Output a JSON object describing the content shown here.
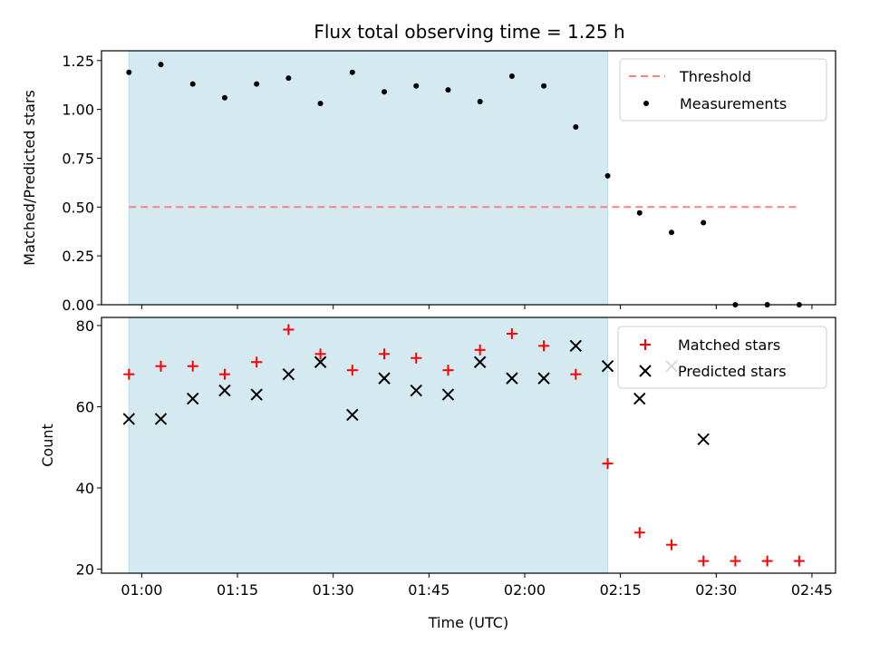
{
  "chart_data": {
    "title": "Flux total observing time = 1.25 h",
    "xlabel": "Time (UTC)",
    "x_tick_labels": [
      "01:00",
      "01:15",
      "01:30",
      "01:45",
      "02:00",
      "02:15",
      "02:30",
      "02:45"
    ],
    "x_tick_minutes": [
      60,
      75,
      90,
      105,
      120,
      135,
      150,
      165
    ],
    "xlim_minutes": [
      53.7,
      168.7
    ],
    "observing_window_minutes": [
      58,
      133
    ],
    "panels": [
      {
        "type": "scatter",
        "ylabel": "Matched/Predicted stars",
        "ylim": [
          0,
          1.3
        ],
        "yticks": [
          0.0,
          0.25,
          0.5,
          0.75,
          1.0,
          1.25
        ],
        "ytick_labels": [
          "0.00",
          "0.25",
          "0.50",
          "0.75",
          "1.00",
          "1.25"
        ],
        "threshold": {
          "name": "Threshold",
          "value": 0.5,
          "x_range_minutes": [
            58,
            163
          ],
          "color": "#ff8080"
        },
        "series": [
          {
            "name": "Measurements",
            "color": "#000000",
            "x_minutes": [
              58,
              63,
              68,
              73,
              78,
              83,
              88,
              93,
              98,
              103,
              108,
              113,
              118,
              123,
              128,
              133,
              138,
              143,
              148,
              153,
              158,
              163
            ],
            "values": [
              1.19,
              1.23,
              1.13,
              1.06,
              1.13,
              1.16,
              1.03,
              1.19,
              1.09,
              1.12,
              1.1,
              1.04,
              1.17,
              1.12,
              0.91,
              0.66,
              0.47,
              0.37,
              0.42,
              0.0,
              0.0,
              0.0
            ]
          }
        ],
        "legend": {
          "position": "upper right",
          "entries": [
            "Threshold",
            "Measurements"
          ]
        }
      },
      {
        "type": "scatter",
        "ylabel": "Count",
        "ylim": [
          19,
          82
        ],
        "yticks": [
          20,
          40,
          60,
          80
        ],
        "ytick_labels": [
          "20",
          "40",
          "60",
          "80"
        ],
        "series": [
          {
            "name": "Matched stars",
            "marker": "plus",
            "color": "#ff0000",
            "x_minutes": [
              58,
              63,
              68,
              73,
              78,
              83,
              88,
              93,
              98,
              103,
              108,
              113,
              118,
              123,
              128,
              133,
              138,
              143,
              148,
              153,
              158,
              163
            ],
            "values": [
              68,
              70,
              70,
              68,
              71,
              79,
              73,
              69,
              73,
              72,
              69,
              74,
              78,
              75,
              68,
              46,
              29,
              26,
              22,
              22,
              22,
              22
            ]
          },
          {
            "name": "Predicted stars",
            "marker": "x",
            "color": "#000000",
            "x_minutes": [
              58,
              63,
              68,
              73,
              78,
              83,
              88,
              93,
              98,
              103,
              108,
              113,
              118,
              123,
              128,
              133,
              138,
              143,
              148
            ],
            "values": [
              57,
              57,
              62,
              64,
              63,
              68,
              71,
              58,
              67,
              64,
              63,
              71,
              67,
              67,
              75,
              70,
              62,
              70,
              52
            ]
          }
        ],
        "legend": {
          "position": "upper right",
          "entries": [
            "Matched stars",
            "Predicted stars"
          ]
        }
      }
    ],
    "colors": {
      "shade": "#d4eaf0",
      "shade_edge": "#b9dde6"
    }
  }
}
